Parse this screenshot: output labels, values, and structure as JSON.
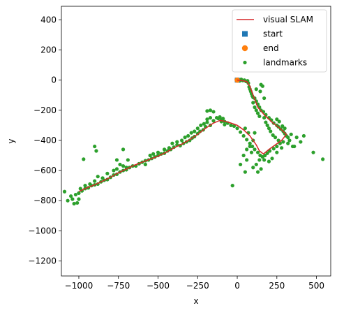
{
  "chart_data": {
    "type": "scatter",
    "xlabel": "x",
    "ylabel": "y",
    "xlim": [
      -1110,
      590
    ],
    "ylim": [
      -1300,
      490
    ],
    "x_ticks": [
      -1000,
      -750,
      -500,
      -250,
      0,
      250,
      500
    ],
    "x_tick_labels": [
      "−1000",
      "−750",
      "−500",
      "−250",
      "0",
      "250",
      "500"
    ],
    "y_ticks": [
      400,
      200,
      0,
      -200,
      -400,
      -600,
      -800,
      -1000,
      -1200
    ],
    "y_tick_labels": [
      "400",
      "200",
      "0",
      "−200",
      "−400",
      "−600",
      "−800",
      "−1000",
      "−1200"
    ],
    "grid": false,
    "legend_position": "top-right",
    "legend": [
      {
        "label": "visual SLAM",
        "marker": "line",
        "color": "#d62728"
      },
      {
        "label": "start",
        "marker": "square",
        "color": "#1f77b4"
      },
      {
        "label": "end",
        "marker": "circle",
        "color": "#ff7f0e"
      },
      {
        "label": "landmarks",
        "marker": "dot",
        "color": "#2ca02c"
      }
    ],
    "series": [
      {
        "name": "visual SLAM",
        "kind": "line",
        "color": "#d62728",
        "points": [
          [
            0,
            0
          ],
          [
            20,
            -2
          ],
          [
            40,
            -5
          ],
          [
            60,
            -10
          ],
          [
            80,
            -40
          ],
          [
            100,
            -100
          ],
          [
            130,
            -180
          ],
          [
            170,
            -230
          ],
          [
            220,
            -280
          ],
          [
            270,
            -320
          ],
          [
            310,
            -360
          ],
          [
            280,
            -400
          ],
          [
            240,
            -430
          ],
          [
            200,
            -460
          ],
          [
            165,
            -490
          ],
          [
            140,
            -470
          ],
          [
            120,
            -430
          ],
          [
            80,
            -370
          ],
          [
            40,
            -330
          ],
          [
            0,
            -300
          ],
          [
            -40,
            -285
          ],
          [
            -80,
            -272
          ],
          [
            -110,
            -268
          ],
          [
            -150,
            -285
          ],
          [
            -200,
            -320
          ],
          [
            -250,
            -360
          ],
          [
            -300,
            -395
          ],
          [
            -350,
            -425
          ],
          [
            -400,
            -450
          ],
          [
            -450,
            -480
          ],
          [
            -500,
            -505
          ],
          [
            -550,
            -525
          ],
          [
            -600,
            -545
          ],
          [
            -650,
            -565
          ],
          [
            -700,
            -590
          ],
          [
            -750,
            -615
          ],
          [
            -800,
            -645
          ],
          [
            -850,
            -670
          ],
          [
            -900,
            -695
          ],
          [
            -950,
            -715
          ],
          [
            -980,
            -730
          ],
          [
            -1000,
            -740
          ]
        ]
      },
      {
        "name": "start",
        "kind": "square",
        "color": "#1f77b4",
        "points": [
          [
            0,
            0
          ]
        ]
      },
      {
        "name": "end",
        "kind": "circle",
        "color": "#ff7f0e",
        "points": [
          [
            0,
            0
          ]
        ]
      },
      {
        "name": "landmarks",
        "kind": "dot",
        "color": "#2ca02c",
        "points": [
          [
            -5,
            5
          ],
          [
            5,
            0
          ],
          [
            15,
            -5
          ],
          [
            25,
            5
          ],
          [
            35,
            -3
          ],
          [
            45,
            0
          ],
          [
            55,
            -8
          ],
          [
            65,
            -5
          ],
          [
            70,
            -20
          ],
          [
            75,
            -45
          ],
          [
            80,
            -60
          ],
          [
            85,
            -75
          ],
          [
            90,
            -90
          ],
          [
            95,
            -105
          ],
          [
            100,
            -115
          ],
          [
            110,
            -120
          ],
          [
            120,
            -140
          ],
          [
            130,
            -160
          ],
          [
            140,
            -180
          ],
          [
            150,
            -200
          ],
          [
            165,
            -210
          ],
          [
            180,
            -230
          ],
          [
            200,
            -250
          ],
          [
            215,
            -265
          ],
          [
            230,
            -285
          ],
          [
            250,
            -300
          ],
          [
            260,
            -310
          ],
          [
            275,
            -325
          ],
          [
            290,
            -340
          ],
          [
            300,
            -355
          ],
          [
            310,
            -370
          ],
          [
            330,
            -400
          ],
          [
            350,
            -440
          ],
          [
            375,
            -380
          ],
          [
            420,
            -370
          ],
          [
            480,
            -480
          ],
          [
            540,
            -525
          ],
          [
            150,
            -30
          ],
          [
            160,
            -40
          ],
          [
            120,
            -60
          ],
          [
            145,
            -75
          ],
          [
            250,
            -260
          ],
          [
            265,
            -275
          ],
          [
            285,
            -305
          ],
          [
            300,
            -320
          ],
          [
            320,
            -380
          ],
          [
            290,
            -410
          ],
          [
            270,
            -420
          ],
          [
            250,
            -440
          ],
          [
            230,
            -455
          ],
          [
            205,
            -470
          ],
          [
            190,
            -485
          ],
          [
            175,
            -500
          ],
          [
            160,
            -510
          ],
          [
            145,
            -500
          ],
          [
            130,
            -480
          ],
          [
            110,
            -460
          ],
          [
            95,
            -440
          ],
          [
            80,
            -420
          ],
          [
            60,
            -395
          ],
          [
            40,
            -370
          ],
          [
            20,
            -345
          ],
          [
            0,
            -320
          ],
          [
            -20,
            -305
          ],
          [
            -40,
            -300
          ],
          [
            -60,
            -285
          ],
          [
            -80,
            -275
          ],
          [
            -100,
            -262
          ],
          [
            -110,
            -245
          ],
          [
            -90,
            -255
          ],
          [
            -130,
            -250
          ],
          [
            -150,
            -270
          ],
          [
            -170,
            -300
          ],
          [
            -190,
            -280
          ],
          [
            -190,
            -205
          ],
          [
            -170,
            -200
          ],
          [
            -150,
            -210
          ],
          [
            -200,
            -310
          ],
          [
            -215,
            -330
          ],
          [
            -235,
            -340
          ],
          [
            -250,
            -355
          ],
          [
            -270,
            -375
          ],
          [
            -285,
            -385
          ],
          [
            -300,
            -400
          ],
          [
            -320,
            -410
          ],
          [
            -340,
            -420
          ],
          [
            -360,
            -435
          ],
          [
            -380,
            -430
          ],
          [
            -400,
            -445
          ],
          [
            -420,
            -460
          ],
          [
            -440,
            -470
          ],
          [
            -460,
            -485
          ],
          [
            -480,
            -490
          ],
          [
            -500,
            -500
          ],
          [
            -520,
            -510
          ],
          [
            -540,
            -520
          ],
          [
            -560,
            -530
          ],
          [
            -580,
            -535
          ],
          [
            -600,
            -545
          ],
          [
            -620,
            -555
          ],
          [
            -640,
            -570
          ],
          [
            -660,
            -570
          ],
          [
            -680,
            -580
          ],
          [
            -700,
            -595
          ],
          [
            -720,
            -600
          ],
          [
            -740,
            -610
          ],
          [
            -760,
            -625
          ],
          [
            -780,
            -630
          ],
          [
            -800,
            -645
          ],
          [
            -820,
            -660
          ],
          [
            -840,
            -665
          ],
          [
            -860,
            -675
          ],
          [
            -880,
            -690
          ],
          [
            -900,
            -695
          ],
          [
            -920,
            -700
          ],
          [
            -940,
            -715
          ],
          [
            -960,
            -720
          ],
          [
            -980,
            -735
          ],
          [
            -1000,
            -750
          ],
          [
            -1020,
            -760
          ],
          [
            -1040,
            -790
          ],
          [
            -1050,
            -770
          ],
          [
            -1070,
            -800
          ],
          [
            -1090,
            -740
          ],
          [
            -1030,
            -820
          ],
          [
            -1010,
            -815
          ],
          [
            -1000,
            -790
          ],
          [
            -990,
            -720
          ],
          [
            -960,
            -700
          ],
          [
            -930,
            -690
          ],
          [
            -900,
            -670
          ],
          [
            -880,
            -640
          ],
          [
            -850,
            -650
          ],
          [
            -820,
            -620
          ],
          [
            -780,
            -600
          ],
          [
            -760,
            -590
          ],
          [
            -740,
            -560
          ],
          [
            -720,
            -570
          ],
          [
            -700,
            -580
          ],
          [
            -690,
            -530
          ],
          [
            -760,
            -530
          ],
          [
            -720,
            -460
          ],
          [
            -900,
            -440
          ],
          [
            -890,
            -470
          ],
          [
            -970,
            -525
          ],
          [
            -580,
            -560
          ],
          [
            -550,
            -500
          ],
          [
            -530,
            -490
          ],
          [
            -500,
            -480
          ],
          [
            -460,
            -460
          ],
          [
            -430,
            -450
          ],
          [
            -410,
            -420
          ],
          [
            -380,
            -410
          ],
          [
            -350,
            -400
          ],
          [
            -330,
            -380
          ],
          [
            -310,
            -370
          ],
          [
            -290,
            -350
          ],
          [
            -270,
            -340
          ],
          [
            -250,
            -320
          ],
          [
            -230,
            -300
          ],
          [
            -210,
            -290
          ],
          [
            -190,
            -260
          ],
          [
            -170,
            -250
          ],
          [
            -120,
            -255
          ],
          [
            -100,
            -275
          ],
          [
            -80,
            -295
          ],
          [
            50,
            -320
          ],
          [
            70,
            -350
          ],
          [
            80,
            -440
          ],
          [
            60,
            -460
          ],
          [
            40,
            -500
          ],
          [
            20,
            -560
          ],
          [
            50,
            -610
          ],
          [
            -30,
            -700
          ],
          [
            100,
            -580
          ],
          [
            120,
            -560
          ],
          [
            140,
            -530
          ],
          [
            170,
            -530
          ],
          [
            200,
            -540
          ],
          [
            220,
            -520
          ],
          [
            250,
            -480
          ],
          [
            280,
            -450
          ],
          [
            320,
            -420
          ],
          [
            360,
            -440
          ],
          [
            400,
            -410
          ],
          [
            340,
            -360
          ],
          [
            170,
            -120
          ],
          [
            170,
            -250
          ],
          [
            180,
            -280
          ],
          [
            190,
            -300
          ],
          [
            200,
            -320
          ],
          [
            210,
            -340
          ],
          [
            225,
            -365
          ],
          [
            240,
            -380
          ],
          [
            260,
            -400
          ],
          [
            120,
            -200
          ],
          [
            110,
            -180
          ],
          [
            100,
            -150
          ],
          [
            130,
            -220
          ],
          [
            140,
            -240
          ],
          [
            110,
            -350
          ],
          [
            100,
            -400
          ],
          [
            90,
            -480
          ],
          [
            60,
            -530
          ],
          [
            130,
            -610
          ],
          [
            150,
            -590
          ]
        ]
      }
    ]
  }
}
